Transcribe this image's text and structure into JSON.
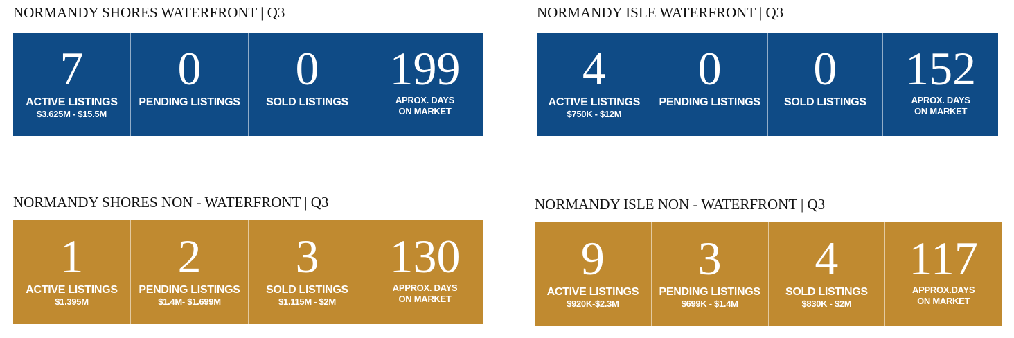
{
  "colors": {
    "blue": "#0f4b86",
    "gold": "#c08a30"
  },
  "panels": [
    {
      "title": "NORMANDY SHORES WATERFRONT | Q3",
      "stats": [
        {
          "value": "7",
          "label": "ACTIVE LISTINGS",
          "sub": "$3.625M - $15.5M"
        },
        {
          "value": "0",
          "label": "PENDING LISTINGS",
          "sub": ""
        },
        {
          "value": "0",
          "label": "SOLD LISTINGS",
          "sub": ""
        },
        {
          "value": "199",
          "label": "APROX. DAYS",
          "sub": "ON MARKET"
        }
      ]
    },
    {
      "title": "NORMANDY ISLE WATERFRONT | Q3",
      "stats": [
        {
          "value": "4",
          "label": "ACTIVE LISTINGS",
          "sub": "$750K - $12M"
        },
        {
          "value": "0",
          "label": "PENDING LISTINGS",
          "sub": ""
        },
        {
          "value": "0",
          "label": "SOLD LISTINGS",
          "sub": ""
        },
        {
          "value": "152",
          "label": "APROX. DAYS",
          "sub": "ON MARKET"
        }
      ]
    },
    {
      "title": "NORMANDY SHORES NON - WATERFRONT | Q3",
      "stats": [
        {
          "value": "1",
          "label": "ACTIVE LISTINGS",
          "sub": "$1.395M"
        },
        {
          "value": "2",
          "label": "PENDING LISTINGS",
          "sub": "$1.4M- $1.699M"
        },
        {
          "value": "3",
          "label": "SOLD LISTINGS",
          "sub": "$1.115M - $2M"
        },
        {
          "value": "130",
          "label": "APPROX. DAYS",
          "sub": "ON MARKET"
        }
      ]
    },
    {
      "title": "NORMANDY ISLE NON - WATERFRONT | Q3",
      "stats": [
        {
          "value": "9",
          "label": "ACTIVE LISTINGS",
          "sub": "$920K-$2.3M"
        },
        {
          "value": "3",
          "label": "PENDING LISTINGS",
          "sub": "$699K - $1.4M"
        },
        {
          "value": "4",
          "label": "SOLD LISTINGS",
          "sub": "$830K - $2M"
        },
        {
          "value": "117",
          "label": "APPROX.DAYS",
          "sub": "ON MARKET"
        }
      ]
    }
  ]
}
